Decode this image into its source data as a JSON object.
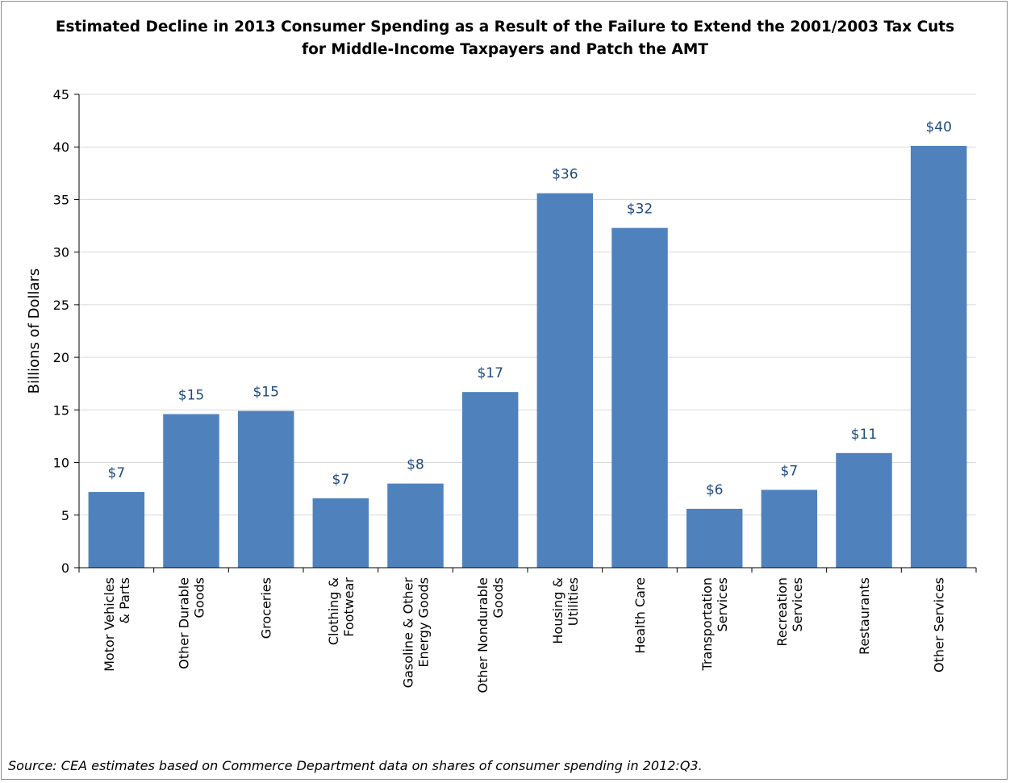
{
  "chart_data": {
    "type": "bar",
    "title": "Estimated Decline in 2013 Consumer Spending as a Result of the Failure to Extend the 2001/2003 Tax Cuts for Middle-Income Taxpayers and Patch the AMT",
    "title_lines": [
      "Estimated Decline in 2013 Consumer Spending as a Result of the Failure to Extend the 2001/2003 Tax Cuts",
      "for Middle-Income Taxpayers and Patch the AMT"
    ],
    "ylabel": "Billions of Dollars",
    "xlabel": "",
    "ylim": [
      0,
      45
    ],
    "yticks": [
      0,
      5,
      10,
      15,
      20,
      25,
      30,
      35,
      40,
      45
    ],
    "grid": true,
    "legend": "none",
    "bar_color": "#4f81bd",
    "label_color": "#1f497d",
    "categories": [
      [
        "Motor Vehicles",
        "& Parts"
      ],
      [
        "Other Durable",
        "Goods"
      ],
      [
        "Groceries"
      ],
      [
        "Clothing &",
        "Footwear"
      ],
      [
        "Gasoline & Other",
        "Energy Goods"
      ],
      [
        "Other Nondurable",
        "Goods"
      ],
      [
        "Housing &",
        "Utilities"
      ],
      [
        "Health Care"
      ],
      [
        "Transportation",
        "Services"
      ],
      [
        "Recreation",
        "Services"
      ],
      [
        "Restaurants"
      ],
      [
        "Other Services"
      ]
    ],
    "values": [
      7.2,
      14.6,
      14.9,
      6.6,
      8.0,
      16.7,
      35.6,
      32.3,
      5.6,
      7.4,
      10.9,
      40.1
    ],
    "data_labels": [
      "$7",
      "$15",
      "$15",
      "$7",
      "$8",
      "$17",
      "$36",
      "$32",
      "$6",
      "$7",
      "$11",
      "$40"
    ]
  },
  "source": "Source: CEA estimates based on Commerce Department data on shares of consumer spending in 2012:Q3."
}
